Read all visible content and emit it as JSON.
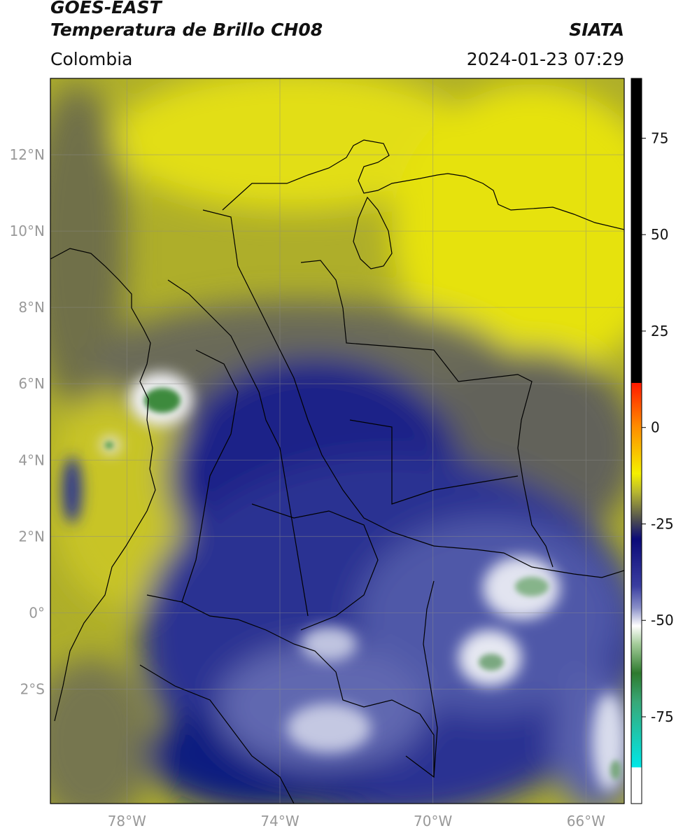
{
  "header": {
    "satellite": "GOES-EAST",
    "product": "Temperatura de Brillo CH08",
    "region": "Colombia",
    "agency": "SIATA",
    "datetime": "2024-01-23 07:29"
  },
  "map": {
    "lon_range": [
      -80,
      -65
    ],
    "lat_range": [
      -5,
      14
    ],
    "lat_ticks": [
      {
        "value": 12,
        "label": "12°N"
      },
      {
        "value": 10,
        "label": "10°N"
      },
      {
        "value": 8,
        "label": "8°N"
      },
      {
        "value": 6,
        "label": "6°N"
      },
      {
        "value": 4,
        "label": "4°N"
      },
      {
        "value": 2,
        "label": "2°N"
      },
      {
        "value": 0,
        "label": "0°"
      },
      {
        "value": -2,
        "label": "2°S"
      }
    ],
    "lon_ticks": [
      {
        "value": -78,
        "label": "78°W"
      },
      {
        "value": -74,
        "label": "74°W"
      },
      {
        "value": -70,
        "label": "70°W"
      },
      {
        "value": -66,
        "label": "66°W"
      }
    ],
    "colors": {
      "warm_yellow": "#e8e40a",
      "olive": "#aeae2a",
      "dark_olive": "#5a5a48",
      "navy": "#101a80",
      "blue": "#3a48a8",
      "light_blue": "#8890c8",
      "white": "#f4f4f8",
      "green": "#3c8a3c"
    }
  },
  "colorbar": {
    "ticks": [
      {
        "value": 75,
        "label": "75"
      },
      {
        "value": 50,
        "label": "50"
      },
      {
        "value": 25,
        "label": "25"
      },
      {
        "value": 0,
        "label": "0"
      },
      {
        "value": -25,
        "label": "-25"
      },
      {
        "value": -50,
        "label": "-50"
      },
      {
        "value": -75,
        "label": "-75"
      }
    ]
  }
}
